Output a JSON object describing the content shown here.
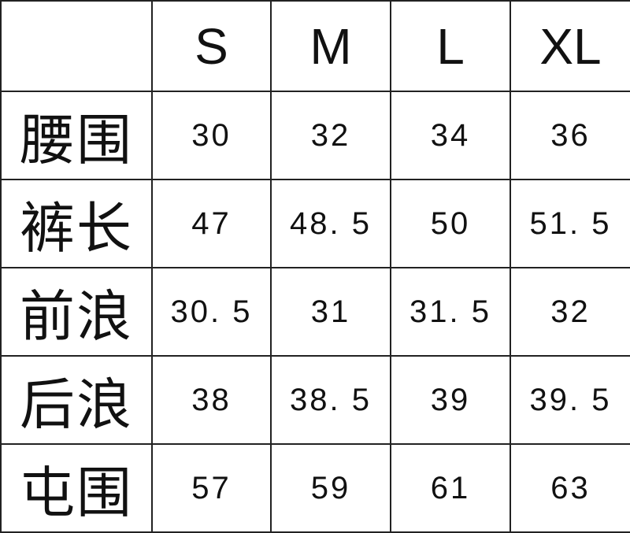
{
  "header": {
    "corner": "",
    "sizes": [
      "S",
      "M",
      "L",
      "XL"
    ]
  },
  "rows": [
    {
      "label": "腰围",
      "values": [
        "30",
        "32",
        "34",
        "36"
      ]
    },
    {
      "label": "裤长",
      "values": [
        "47",
        "48. 5",
        "50",
        "51. 5"
      ]
    },
    {
      "label": "前浪",
      "values": [
        "30. 5",
        "31",
        "31. 5",
        "32"
      ]
    },
    {
      "label": "后浪",
      "values": [
        "38",
        "38. 5",
        "39",
        "39. 5"
      ]
    },
    {
      "label": "屯围",
      "values": [
        "57",
        "59",
        "61",
        "63"
      ]
    }
  ]
}
